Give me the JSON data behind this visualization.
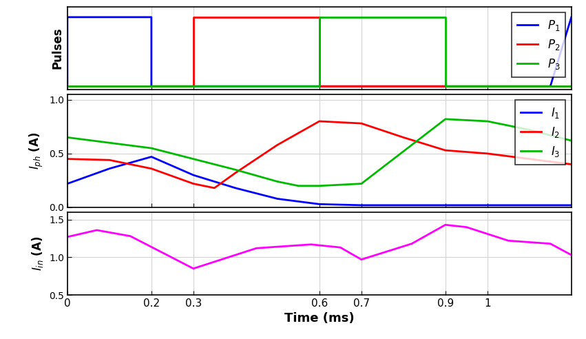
{
  "xlim": [
    0,
    1.2
  ],
  "xticks": [
    0,
    0.2,
    0.3,
    0.6,
    0.7,
    0.9,
    1.0
  ],
  "xlabel": "Time (ms)",
  "pulse_ylabel": "Pulses",
  "iph_ylabel": "$I_{ph}$ (A)",
  "iin_ylabel": "$I_{in}$ (A)",
  "pulse_ylim": [
    -0.05,
    1.15
  ],
  "iph_ylim": [
    0,
    1.05
  ],
  "iin_ylim": [
    0.5,
    1.6
  ],
  "iph_yticks": [
    0,
    0.5,
    1
  ],
  "iin_yticks": [
    0.5,
    1.0,
    1.5
  ],
  "colors": {
    "blue": "#0000FF",
    "red": "#FF0000",
    "green": "#00BB00",
    "magenta": "#FF00FF"
  },
  "P1": {
    "x": [
      0,
      0,
      0.2,
      0.2,
      1.15,
      1.15,
      1.2
    ],
    "y": [
      0,
      1,
      1,
      0,
      0,
      0,
      1
    ]
  },
  "P2": {
    "x": [
      0,
      0.3,
      0.3,
      0.6,
      0.6,
      1.2
    ],
    "y": [
      0,
      0,
      1,
      1,
      0,
      0
    ]
  },
  "P3": {
    "x": [
      0,
      0.6,
      0.6,
      0.9,
      0.9,
      1.2
    ],
    "y": [
      0,
      0,
      1,
      1,
      0,
      0
    ]
  },
  "I1": {
    "x": [
      0,
      0.1,
      0.2,
      0.3,
      0.4,
      0.5,
      0.6,
      0.7,
      0.8,
      0.9,
      1.0,
      1.1,
      1.2
    ],
    "y": [
      0.22,
      0.36,
      0.47,
      0.3,
      0.18,
      0.08,
      0.03,
      0.02,
      0.02,
      0.02,
      0.02,
      0.02,
      0.02
    ]
  },
  "I2": {
    "x": [
      0,
      0.1,
      0.2,
      0.3,
      0.35,
      0.4,
      0.5,
      0.6,
      0.7,
      0.8,
      0.9,
      1.0,
      1.1,
      1.2
    ],
    "y": [
      0.45,
      0.44,
      0.36,
      0.22,
      0.18,
      0.32,
      0.58,
      0.8,
      0.78,
      0.65,
      0.53,
      0.5,
      0.45,
      0.4
    ]
  },
  "I3": {
    "x": [
      0,
      0.1,
      0.2,
      0.3,
      0.4,
      0.5,
      0.55,
      0.6,
      0.7,
      0.8,
      0.9,
      1.0,
      1.1,
      1.2
    ],
    "y": [
      0.65,
      0.6,
      0.55,
      0.45,
      0.35,
      0.24,
      0.2,
      0.2,
      0.22,
      0.52,
      0.82,
      0.8,
      0.72,
      0.62
    ]
  },
  "Iin": {
    "x": [
      0,
      0.07,
      0.15,
      0.3,
      0.45,
      0.58,
      0.65,
      0.7,
      0.82,
      0.9,
      0.95,
      1.05,
      1.15,
      1.2
    ],
    "y": [
      1.27,
      1.36,
      1.28,
      0.85,
      1.12,
      1.17,
      1.13,
      0.97,
      1.18,
      1.43,
      1.4,
      1.22,
      1.18,
      1.03
    ]
  },
  "legend_pulse": [
    {
      "label": "$P_1$",
      "color": "#0000FF"
    },
    {
      "label": "$P_2$",
      "color": "#FF0000"
    },
    {
      "label": "$P_3$",
      "color": "#00BB00"
    }
  ],
  "legend_iph": [
    {
      "label": "$I_1$",
      "color": "#0000FF"
    },
    {
      "label": "$I_2$",
      "color": "#FF0000"
    },
    {
      "label": "$I_3$",
      "color": "#00BB00"
    }
  ]
}
